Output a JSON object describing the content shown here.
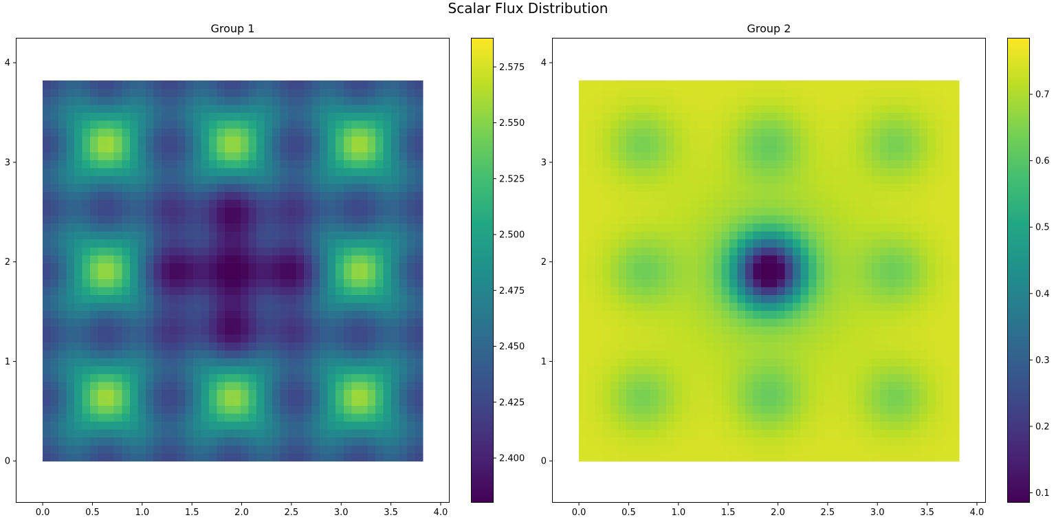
{
  "figure": {
    "title": "Scalar Flux Distribution"
  },
  "chart_data": [
    {
      "type": "heatmap",
      "title": "Group 1",
      "xlabel": "",
      "ylabel": "",
      "extent": [
        0,
        3.82,
        0,
        3.82
      ],
      "grid_cells": 48,
      "xlim": [
        -0.27,
        4.09
      ],
      "ylim": [
        -0.42,
        4.25
      ],
      "xticks": [
        0.0,
        0.5,
        1.0,
        1.5,
        2.0,
        2.5,
        3.0,
        3.5,
        4.0
      ],
      "xtick_labels": [
        "0.0",
        "0.5",
        "1.0",
        "1.5",
        "2.0",
        "2.5",
        "3.0",
        "3.5",
        "4.0"
      ],
      "yticks": [
        0,
        1,
        2,
        3,
        4
      ],
      "ytick_labels": [
        "0",
        "1",
        "2",
        "3",
        "4"
      ],
      "colormap": "viridis",
      "value_range": [
        2.38,
        2.588
      ],
      "colorbar_ticks": [
        2.4,
        2.425,
        2.45,
        2.475,
        2.5,
        2.525,
        2.55,
        2.575
      ],
      "colorbar_tick_labels": [
        "2.400",
        "2.425",
        "2.450",
        "2.475",
        "2.500",
        "2.525",
        "2.550",
        "2.575"
      ],
      "field": {
        "base": 2.447,
        "peaks": [
          {
            "x": 0.64,
            "y": 0.64,
            "amp": 0.135,
            "sigma": 0.2
          },
          {
            "x": 1.91,
            "y": 0.64,
            "amp": 0.135,
            "sigma": 0.2
          },
          {
            "x": 3.18,
            "y": 0.64,
            "amp": 0.135,
            "sigma": 0.2
          },
          {
            "x": 0.64,
            "y": 1.91,
            "amp": 0.135,
            "sigma": 0.2
          },
          {
            "x": 3.18,
            "y": 1.91,
            "amp": 0.135,
            "sigma": 0.2
          },
          {
            "x": 0.64,
            "y": 3.18,
            "amp": 0.135,
            "sigma": 0.2
          },
          {
            "x": 1.91,
            "y": 3.18,
            "amp": 0.135,
            "sigma": 0.2
          },
          {
            "x": 3.18,
            "y": 3.18,
            "amp": 0.135,
            "sigma": 0.2
          },
          {
            "x": 1.91,
            "y": 1.91,
            "amp": -0.045,
            "sigma": 0.55
          },
          {
            "x": 1.4,
            "y": 1.91,
            "amp": -0.018,
            "sigma": 0.22
          },
          {
            "x": 2.42,
            "y": 1.91,
            "amp": -0.018,
            "sigma": 0.22
          },
          {
            "x": 1.91,
            "y": 1.4,
            "amp": -0.018,
            "sigma": 0.22
          },
          {
            "x": 1.91,
            "y": 2.42,
            "amp": -0.018,
            "sigma": 0.22
          }
        ],
        "ripple": {
          "amp": 0.022,
          "period": 0.636,
          "phase": 0.318
        }
      }
    },
    {
      "type": "heatmap",
      "title": "Group 2",
      "xlabel": "",
      "ylabel": "",
      "extent": [
        0,
        3.82,
        0,
        3.82
      ],
      "grid_cells": 48,
      "xlim": [
        -0.27,
        4.09
      ],
      "ylim": [
        -0.42,
        4.25
      ],
      "xticks": [
        0.0,
        0.5,
        1.0,
        1.5,
        2.0,
        2.5,
        3.0,
        3.5,
        4.0
      ],
      "xtick_labels": [
        "0.0",
        "0.5",
        "1.0",
        "1.5",
        "2.0",
        "2.5",
        "3.0",
        "3.5",
        "4.0"
      ],
      "yticks": [
        0,
        1,
        2,
        3,
        4
      ],
      "ytick_labels": [
        "0",
        "1",
        "2",
        "3",
        "4"
      ],
      "colormap": "viridis",
      "value_range": [
        0.085,
        0.785
      ],
      "colorbar_ticks": [
        0.1,
        0.2,
        0.3,
        0.4,
        0.5,
        0.6,
        0.7
      ],
      "colorbar_tick_labels": [
        "0.1",
        "0.2",
        "0.3",
        "0.4",
        "0.5",
        "0.6",
        "0.7"
      ],
      "field": {
        "base": 0.745,
        "peaks": [
          {
            "x": 0.64,
            "y": 0.64,
            "amp": -0.1,
            "sigma": 0.24
          },
          {
            "x": 1.91,
            "y": 0.64,
            "amp": -0.11,
            "sigma": 0.24
          },
          {
            "x": 3.18,
            "y": 0.64,
            "amp": -0.1,
            "sigma": 0.24
          },
          {
            "x": 0.64,
            "y": 1.91,
            "amp": -0.1,
            "sigma": 0.24
          },
          {
            "x": 3.18,
            "y": 1.91,
            "amp": -0.1,
            "sigma": 0.24
          },
          {
            "x": 0.64,
            "y": 3.18,
            "amp": -0.1,
            "sigma": 0.24
          },
          {
            "x": 1.91,
            "y": 3.18,
            "amp": -0.11,
            "sigma": 0.24
          },
          {
            "x": 3.18,
            "y": 3.18,
            "amp": -0.1,
            "sigma": 0.24
          },
          {
            "x": 1.91,
            "y": 1.91,
            "amp": -0.64,
            "sigma": 0.24
          },
          {
            "x": 1.91,
            "y": 1.91,
            "amp": -0.09,
            "sigma": 0.65
          }
        ],
        "ripple": {
          "amp": 0.0,
          "period": 0.636,
          "phase": 0.318
        }
      }
    }
  ]
}
